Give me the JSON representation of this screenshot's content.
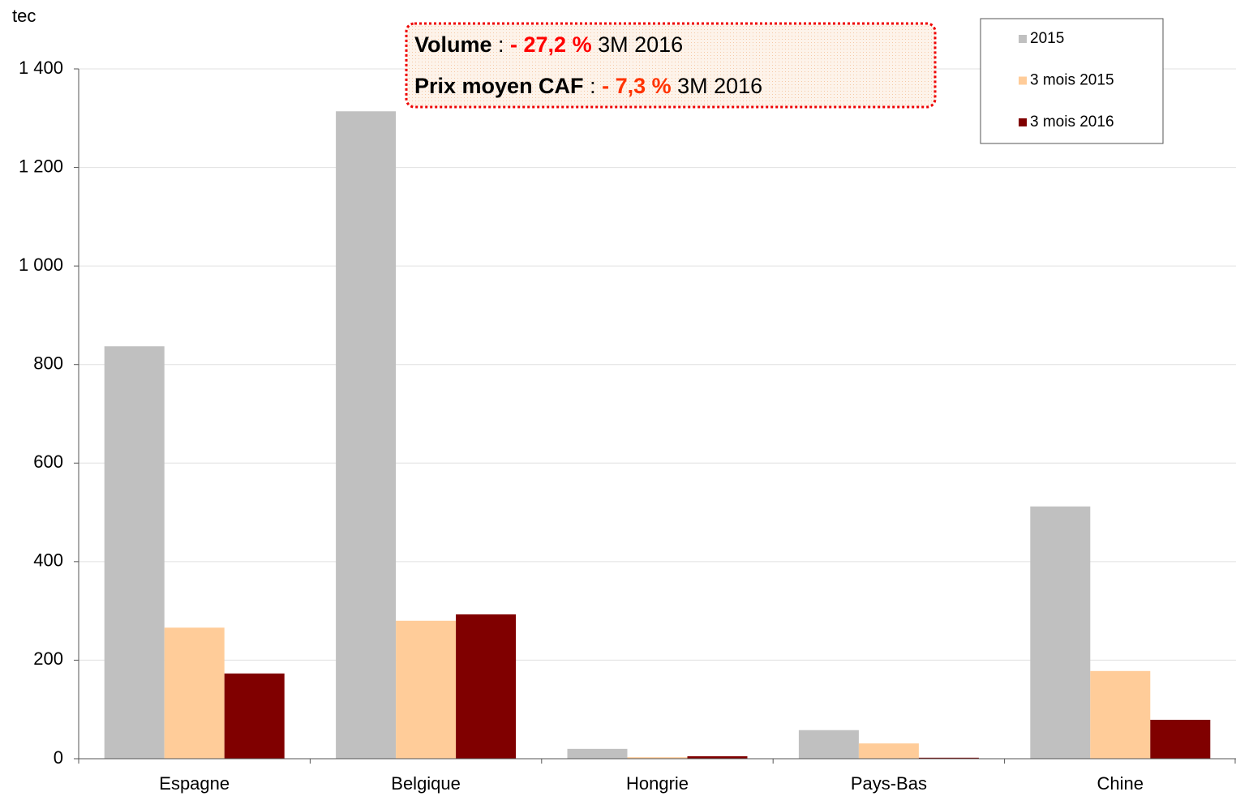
{
  "chart_data": {
    "type": "bar",
    "y_label": "tec",
    "categories": [
      "Espagne",
      "Belgique",
      "Hongrie",
      "Pays-Bas",
      "Chine"
    ],
    "series": [
      {
        "name": "2015",
        "color": "#c0c0c0",
        "values": [
          837,
          1314,
          20,
          58,
          512
        ]
      },
      {
        "name": "3 mois 2015",
        "color": "#ffcc99",
        "values": [
          266,
          280,
          3,
          31,
          178
        ]
      },
      {
        "name": "3 mois 2016",
        "color": "#800000",
        "values": [
          173,
          293,
          5,
          2,
          79
        ]
      }
    ],
    "ylim": [
      0,
      1400
    ],
    "yticks": [
      0,
      200,
      400,
      600,
      800,
      {
        "value": 1000,
        "label": "1 000"
      },
      {
        "value": 1200,
        "label": "1 200"
      },
      {
        "value": 1400,
        "label": "1 400"
      }
    ],
    "grid": true,
    "legend": "upper right",
    "annotations": [
      [
        "Volume",
        " : ",
        "- 27,2 %",
        " 3M 2016"
      ],
      [
        "Prix moyen CAF",
        " : ",
        "- 7,3 %",
        " 3M 2016"
      ]
    ]
  }
}
